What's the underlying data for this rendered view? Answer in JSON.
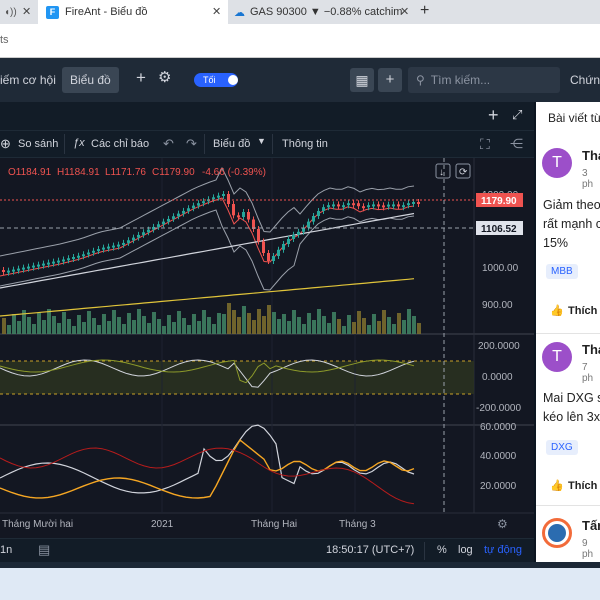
{
  "browser": {
    "tabs": [
      {
        "title": "",
        "active": false
      },
      {
        "title": "FireAnt - Biểu đồ",
        "active": true,
        "favicon": "F"
      },
      {
        "title": "GAS 90300 ▼ −0.88% catchim",
        "active": false
      }
    ],
    "new_tab": "+",
    "address_fragment": "ts"
  },
  "app": {
    "nav_items": [
      "iếm cơ hội",
      "Biểu đồ"
    ],
    "theme_label": "Tối",
    "search_placeholder": "Tìm kiếm...",
    "right_fragment": "Chứng"
  },
  "chart_toolbar": {
    "compare": "So sánh",
    "indicators": "Các chỉ báo",
    "chart_type": "Biểu đồ",
    "info": "Thông tin"
  },
  "ohlc": {
    "open": "O1184.91",
    "high": "H1184.91",
    "low": "L1171.76",
    "close": "C1179.90",
    "change": "-4.66 (-0.39%)"
  },
  "price_scale": {
    "ticks": [
      "1200.00",
      "1000.00",
      "900.00"
    ],
    "last_price": "1179.90",
    "crosshair_price": "1106.52",
    "osc1_ticks": [
      "200.0000",
      "0.0000",
      "-200.0000"
    ],
    "osc2_ticks": [
      "60.0000",
      "40.0000",
      "20.0000"
    ]
  },
  "time_axis": [
    "Tháng Mười hai",
    "2021",
    "Tháng Hai",
    "Tháng 3"
  ],
  "bottom_bar": {
    "interval": "1n",
    "clock": "18:50:17 (UTC+7)",
    "percent": "%",
    "log": "log",
    "auto": "tự động"
  },
  "sidebar": {
    "title": "Bài viết từ",
    "posts": [
      {
        "avatar": "T",
        "name": "Tha",
        "time": "3 ph",
        "body": [
          "Giảm theo",
          "rất mạnh c",
          "15%"
        ],
        "tag": "MBB",
        "like": "Thích"
      },
      {
        "avatar": "T",
        "name": "Tha",
        "time": "7 ph",
        "body": [
          "Mai DXG s",
          "kéo lên 3x"
        ],
        "tag": "DXG",
        "like": "Thích"
      },
      {
        "avatar": "",
        "name": "Tấn",
        "time": "9 ph"
      }
    ]
  },
  "colors": {
    "up": "#26a69a",
    "down": "#ef5350",
    "accent": "#2962ff",
    "last_price_bg": "#ef5350",
    "avatar": "#9c4fc9"
  }
}
